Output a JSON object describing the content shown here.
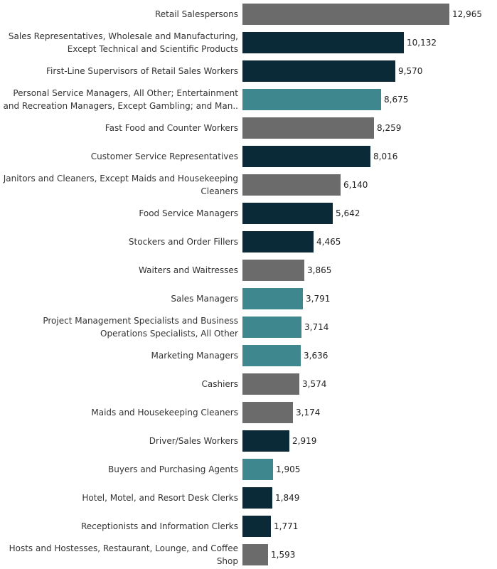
{
  "chart_data": {
    "type": "bar",
    "orientation": "horizontal",
    "title": "",
    "xlabel": "",
    "ylabel": "",
    "xlim": [
      0,
      13000
    ],
    "grid": false,
    "legend": "none",
    "colors": {
      "dark_navy": "#0b2a38",
      "teal": "#3f878e",
      "gray": "#6b6b6b"
    },
    "categories": [
      "Retail Salespersons",
      "Sales Representatives, Wholesale and Manufacturing, Except Technical and Scientific Products",
      "First-Line Supervisors of Retail Sales Workers",
      "Personal Service Managers, All Other; Entertainment and Recreation Managers, Except Gambling; and Man..",
      "Fast Food and Counter Workers",
      "Customer Service Representatives",
      "Janitors and Cleaners, Except Maids and Housekeeping Cleaners",
      "Food Service Managers",
      "Stockers and Order Fillers",
      "Waiters and Waitresses",
      "Sales Managers",
      "Project Management Specialists and Business Operations Specialists, All Other",
      "Marketing Managers",
      "Cashiers",
      "Maids and Housekeeping Cleaners",
      "Driver/Sales Workers",
      "Buyers and Purchasing Agents",
      "Hotel, Motel, and Resort Desk Clerks",
      "Receptionists and Information Clerks",
      "Hosts and Hostesses, Restaurant, Lounge, and Coffee Shop"
    ],
    "values": [
      12965,
      10132,
      9570,
      8675,
      8259,
      8016,
      6140,
      5642,
      4465,
      3865,
      3791,
      3714,
      3636,
      3574,
      3174,
      2919,
      1905,
      1849,
      1771,
      1593
    ],
    "value_labels": [
      "12,965",
      "10,132",
      "9,570",
      "8,675",
      "8,259",
      "8,016",
      "6,140",
      "5,642",
      "4,465",
      "3,865",
      "3,791",
      "3,714",
      "3,636",
      "3,574",
      "3,174",
      "2,919",
      "1,905",
      "1,849",
      "1,771",
      "1,593"
    ],
    "bar_colors": [
      "gray",
      "dark_navy",
      "dark_navy",
      "teal",
      "gray",
      "dark_navy",
      "gray",
      "dark_navy",
      "dark_navy",
      "gray",
      "teal",
      "teal",
      "teal",
      "gray",
      "gray",
      "dark_navy",
      "teal",
      "dark_navy",
      "dark_navy",
      "gray"
    ]
  }
}
